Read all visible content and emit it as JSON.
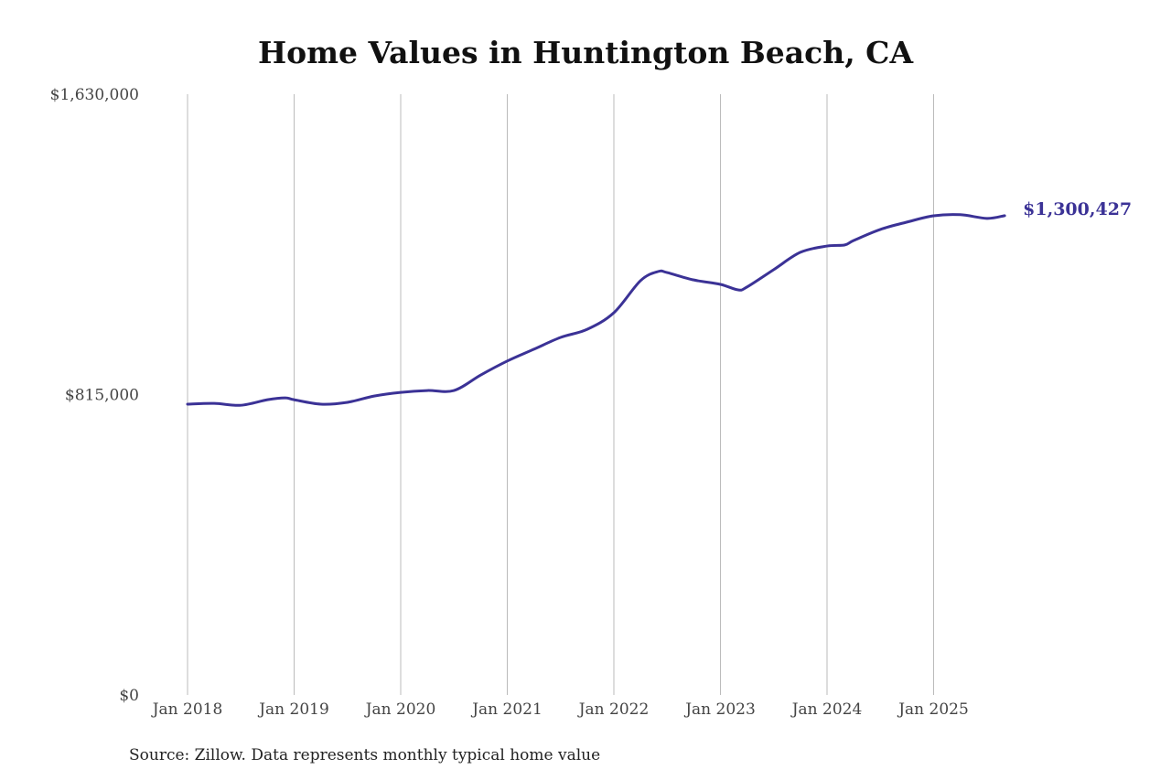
{
  "chart_data": {
    "type": "line",
    "title": "Home Values in Huntington Beach, CA",
    "source": "Source: Zillow. Data represents monthly typical home value",
    "xlabel": "",
    "ylabel": "",
    "ylim": [
      0,
      1630000
    ],
    "y_ticks": [
      {
        "value": 0,
        "label": "$0"
      },
      {
        "value": 815000,
        "label": "$815,000"
      },
      {
        "value": 1630000,
        "label": "$1,630,000"
      }
    ],
    "x_ticks": [
      {
        "value": "2018-01",
        "label": "Jan 2018"
      },
      {
        "value": "2019-01",
        "label": "Jan 2019"
      },
      {
        "value": "2020-01",
        "label": "Jan 2020"
      },
      {
        "value": "2021-01",
        "label": "Jan 2021"
      },
      {
        "value": "2022-01",
        "label": "Jan 2022"
      },
      {
        "value": "2023-01",
        "label": "Jan 2023"
      },
      {
        "value": "2024-01",
        "label": "Jan 2024"
      },
      {
        "value": "2025-01",
        "label": "Jan 2025"
      }
    ],
    "grid": "vertical",
    "line_color": "#3b3296",
    "end_label": "$1,300,427",
    "series": [
      {
        "x": [
          "2018-01",
          "2018-04",
          "2018-07",
          "2018-10",
          "2018-12",
          "2019-01",
          "2019-04",
          "2019-07",
          "2019-10",
          "2020-01",
          "2020-04",
          "2020-07",
          "2020-10",
          "2021-01",
          "2021-04",
          "2021-07",
          "2021-10",
          "2022-01",
          "2022-04",
          "2022-06",
          "2022-07",
          "2022-10",
          "2023-01",
          "2023-03",
          "2023-04",
          "2023-07",
          "2023-10",
          "2024-01",
          "2024-03",
          "2024-04",
          "2024-07",
          "2024-10",
          "2025-01",
          "2025-04",
          "2025-07",
          "2025-09"
        ],
        "y": [
          789000,
          791000,
          786000,
          801000,
          806000,
          801000,
          789000,
          794000,
          811000,
          821000,
          826000,
          826000,
          868000,
          906000,
          938000,
          970000,
          992000,
          1037000,
          1124000,
          1149000,
          1146000,
          1126000,
          1114000,
          1099000,
          1107000,
          1154000,
          1201000,
          1218000,
          1221000,
          1233000,
          1263000,
          1283000,
          1300000,
          1303000,
          1293000,
          1300427
        ]
      }
    ]
  }
}
